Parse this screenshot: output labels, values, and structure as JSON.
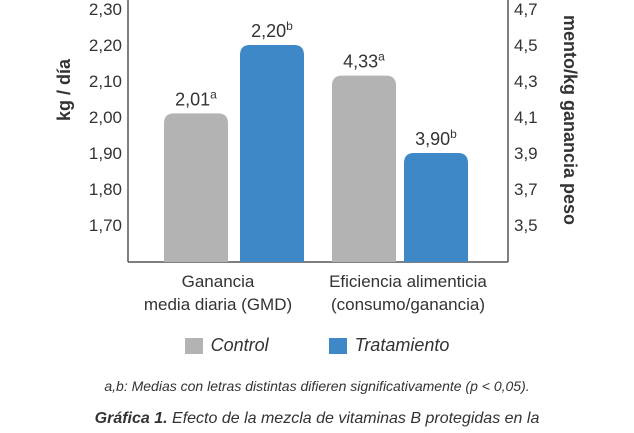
{
  "chart_data": {
    "type": "bar",
    "ylabel_left": "kg / día",
    "ylabel_right": "mento/kg ganancia peso",
    "ylim_left": [
      1.7,
      2.3
    ],
    "ylim_right": [
      3.5,
      4.7
    ],
    "left_ticks": [
      "2,30",
      "2,20",
      "2,10",
      "2,00",
      "1,90",
      "1,80",
      "1,70"
    ],
    "right_ticks": [
      "4,7",
      "4,5",
      "4,3",
      "4,1",
      "3,9",
      "3,7",
      "3,5"
    ],
    "categories": [
      {
        "line1": "Ganancia",
        "line2": "media diaria (GMD)"
      },
      {
        "line1": "Eficiencia alimenticia",
        "line2": "(consumo/ganancia)"
      }
    ],
    "series": [
      {
        "name": "Control",
        "color": "#b3b3b3"
      },
      {
        "name": "Tratamiento",
        "color": "#3f88c8"
      }
    ],
    "bars": [
      {
        "category": 0,
        "series": 0,
        "axis": "left",
        "value": 2.01,
        "label": "2,01",
        "sup": "a"
      },
      {
        "category": 0,
        "series": 1,
        "axis": "left",
        "value": 2.2,
        "label": "2,20",
        "sup": "b"
      },
      {
        "category": 1,
        "series": 0,
        "axis": "right",
        "value": 4.33,
        "label": "4,33",
        "sup": "a"
      },
      {
        "category": 1,
        "series": 1,
        "axis": "right",
        "value": 3.9,
        "label": "3,90",
        "sup": "b"
      }
    ]
  },
  "legend": {
    "control": "Control",
    "treatment": "Tratamiento"
  },
  "footnote": "a,b: Medias con letras distintas difieren significativamente (p < 0,05).",
  "caption": {
    "bold": "Gráfica 1.",
    "text": "Efecto de la mezcla de vitaminas B protegidas en la"
  }
}
